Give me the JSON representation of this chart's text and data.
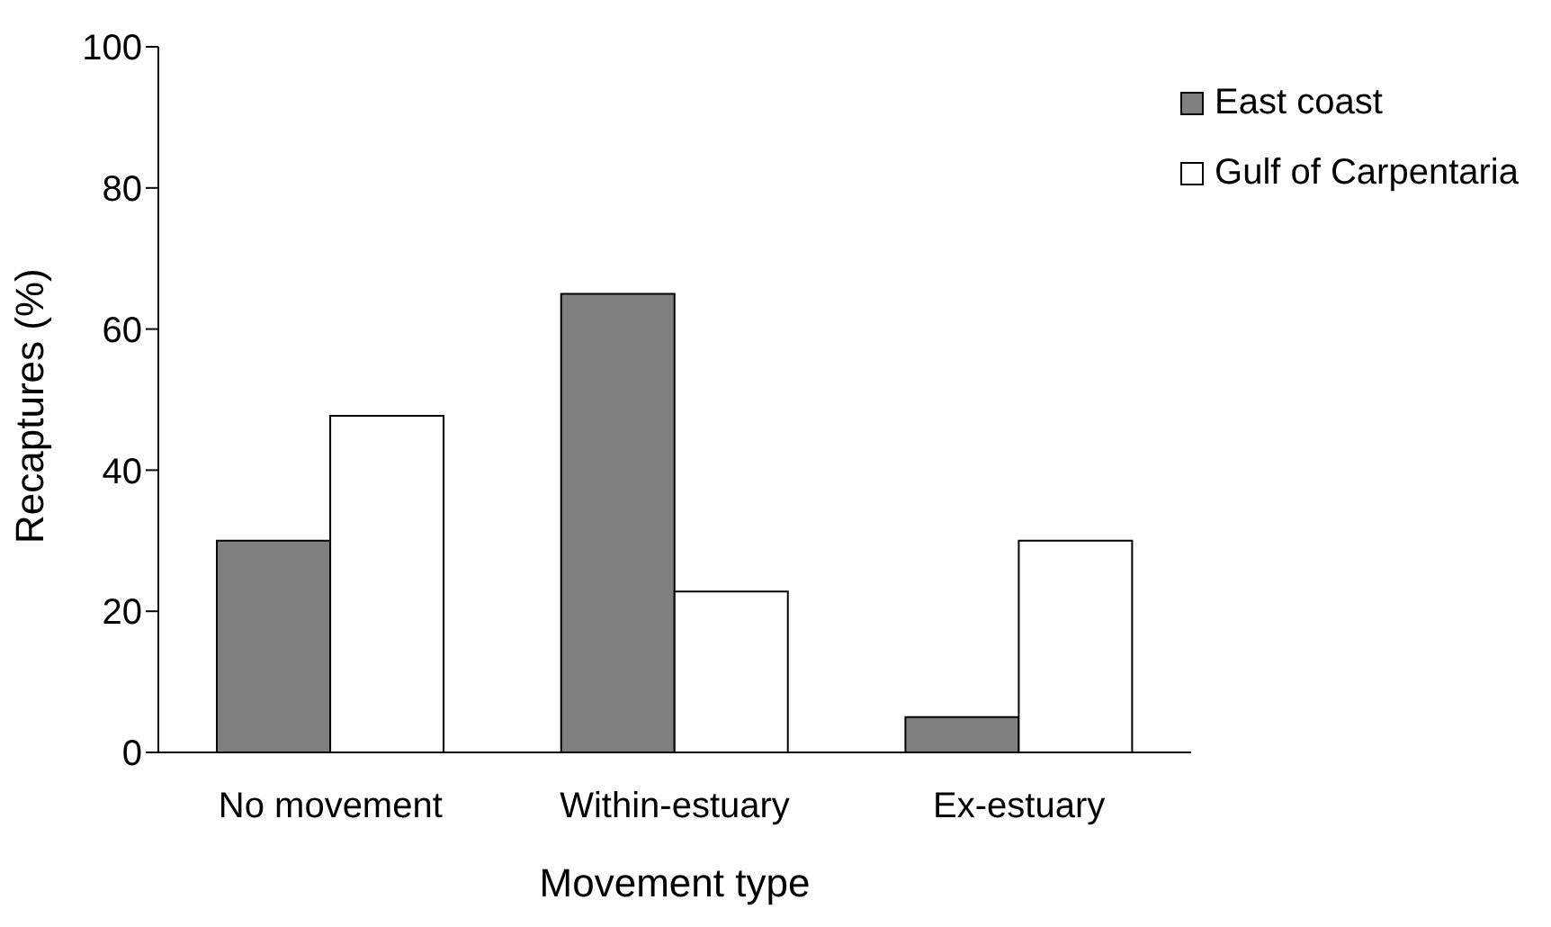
{
  "chart_data": {
    "type": "bar",
    "xlabel": "Movement type",
    "ylabel": "Recaptures (%)",
    "categories": [
      "No movement",
      "Within-estuary",
      "Ex-estuary"
    ],
    "series": [
      {
        "name": "East coast",
        "color": "#808080",
        "values": [
          30,
          65,
          5
        ]
      },
      {
        "name": "Gulf of Carpentaria",
        "color": "#ffffff",
        "values": [
          47.7,
          22.8,
          30
        ]
      }
    ],
    "ylim": [
      0,
      100
    ],
    "yticks": [
      0,
      20,
      40,
      60,
      80,
      100
    ],
    "grid": false,
    "legend": "top right"
  }
}
